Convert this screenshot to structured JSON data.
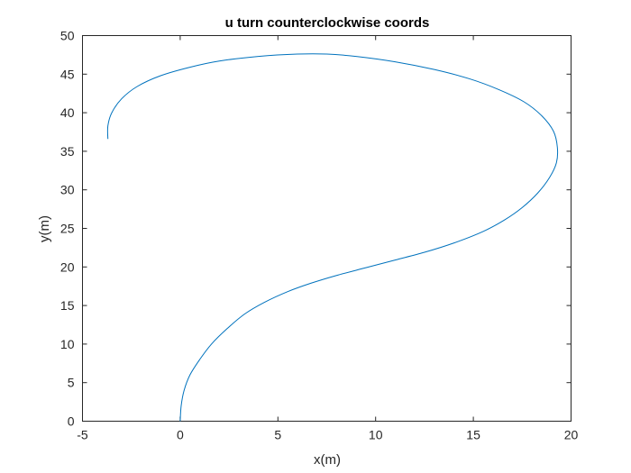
{
  "chart_data": {
    "type": "line",
    "title": "u turn counterclockwise coords",
    "xlabel": "x(m)",
    "ylabel": "y(m)",
    "xlim": [
      -5,
      20
    ],
    "ylim": [
      0,
      50
    ],
    "xticks": [
      "-5",
      "0",
      "5",
      "10",
      "15",
      "20"
    ],
    "yticks": [
      "0",
      "5",
      "10",
      "15",
      "20",
      "25",
      "30",
      "35",
      "40",
      "45",
      "50"
    ],
    "grid": false,
    "series": [
      {
        "color": "#0072BD",
        "x": [
          0,
          0.05,
          0.2,
          0.5,
          1.0,
          1.6,
          2.4,
          3.3,
          4.3,
          5.5,
          6.7,
          8.0,
          9.5,
          11.0,
          12.5,
          14.0,
          15.5,
          16.6,
          17.5,
          18.3,
          18.9,
          19.25,
          19.3,
          19.1,
          18.5,
          17.6,
          16.3,
          14.8,
          13.0,
          11.0,
          9.0,
          7.5,
          6.0,
          4.0,
          2.0,
          0.5,
          -1.0,
          -2.2,
          -3.0,
          -3.5,
          -3.7,
          -3.7
        ],
        "y": [
          0,
          2,
          4,
          6,
          8,
          10,
          12,
          13.9,
          15.4,
          16.8,
          17.9,
          18.9,
          19.9,
          20.9,
          21.9,
          23.1,
          24.6,
          26.1,
          27.7,
          29.6,
          31.6,
          33.5,
          35.5,
          37.6,
          39.6,
          41.4,
          43.0,
          44.4,
          45.6,
          46.6,
          47.3,
          47.6,
          47.6,
          47.3,
          46.7,
          45.9,
          44.8,
          43.4,
          41.8,
          40.0,
          38.3,
          36.6
        ]
      }
    ]
  }
}
